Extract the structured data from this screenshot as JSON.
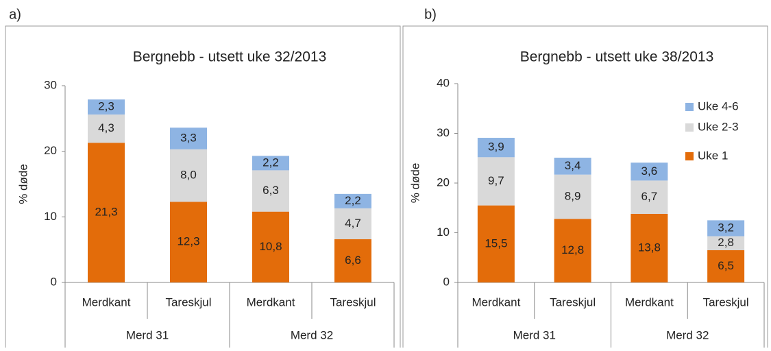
{
  "chart_data": [
    {
      "type": "stacked_bar",
      "panel_label": "a)",
      "title": "Bergnebb - utsett uke  32/2013",
      "y_label": "% døde",
      "categories": [
        "Merdkant",
        "Tareskjul",
        "Merdkant",
        "Tareskjul"
      ],
      "group_labels": [
        "Merd 31",
        "Merd 32"
      ],
      "ylim": [
        0,
        30
      ],
      "yticks": [
        0,
        10,
        20,
        30
      ],
      "series": [
        {
          "color": "#e36c0a",
          "values": [
            21.3,
            12.3,
            10.8,
            6.6
          ],
          "value_labels": [
            "21,3",
            "12,3",
            "10,8",
            "6,6"
          ]
        },
        {
          "color": "#d9d9d9",
          "values": [
            4.3,
            8.0,
            6.3,
            4.7
          ],
          "value_labels": [
            "4,3",
            "8,0",
            "6,3",
            "4,7"
          ]
        },
        {
          "color": "#8eb4e3",
          "values": [
            2.3,
            3.3,
            2.2,
            2.2
          ],
          "value_labels": [
            "2,3",
            "3,3",
            "2,2",
            "2,2"
          ]
        }
      ]
    },
    {
      "type": "stacked_bar",
      "panel_label": "b)",
      "title": "Bergnebb - utsett uke 38/2013",
      "y_label": "% døde",
      "categories": [
        "Merdkant",
        "Tareskjul",
        "Merdkant",
        "Tareskjul"
      ],
      "group_labels": [
        "Merd 31",
        "Merd 32"
      ],
      "ylim": [
        0,
        40
      ],
      "yticks": [
        0,
        10,
        20,
        30,
        40
      ],
      "legend": "right",
      "series": [
        {
          "name": "Uke 1",
          "color": "#e36c0a",
          "values": [
            15.5,
            12.8,
            13.8,
            6.5
          ],
          "value_labels": [
            "15,5",
            "12,8",
            "13,8",
            "6,5"
          ]
        },
        {
          "name": "Uke 2-3",
          "color": "#d9d9d9",
          "values": [
            9.7,
            8.9,
            6.7,
            2.8
          ],
          "value_labels": [
            "9,7",
            "8,9",
            "6,7",
            "2,8"
          ]
        },
        {
          "name": "Uke 4-6",
          "color": "#8eb4e3",
          "values": [
            3.9,
            3.4,
            3.6,
            3.2
          ],
          "value_labels": [
            "3,9",
            "3,4",
            "3,6",
            "3,2"
          ]
        }
      ]
    }
  ]
}
